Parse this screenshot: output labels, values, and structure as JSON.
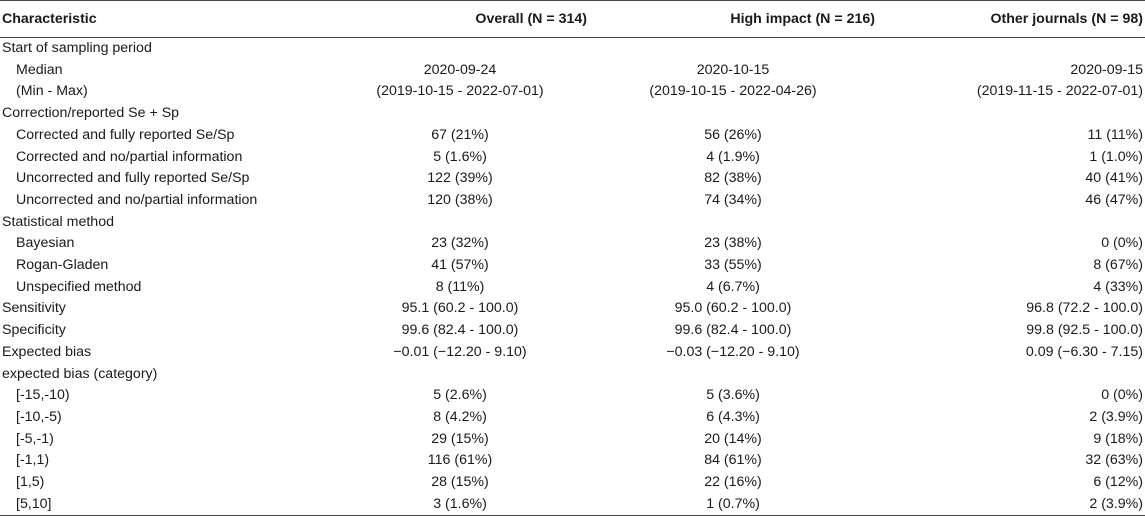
{
  "table": {
    "headers": [
      "Characteristic",
      "Overall (N = 314)",
      "High impact (N = 216)",
      "Other journals (N = 98)"
    ],
    "rows": [
      {
        "label": "Start of sampling period",
        "indent": false,
        "values": [
          "",
          "",
          ""
        ]
      },
      {
        "label": "Median",
        "indent": true,
        "values": [
          "2020-09-24",
          "2020-10-15",
          "2020-09-15"
        ]
      },
      {
        "label": "(Min - Max)",
        "indent": true,
        "values": [
          "(2019-10-15 - 2022-07-01)",
          "(2019-10-15 - 2022-04-26)",
          "(2019-11-15 - 2022-07-01)"
        ]
      },
      {
        "label": "Correction/reported Se + Sp",
        "indent": false,
        "values": [
          "",
          "",
          ""
        ]
      },
      {
        "label": "Corrected and fully reported Se/Sp",
        "indent": true,
        "values": [
          "67 (21%)",
          "56 (26%)",
          "11 (11%)"
        ]
      },
      {
        "label": "Corrected and no/partial information",
        "indent": true,
        "values": [
          "5 (1.6%)",
          "4 (1.9%)",
          "1 (1.0%)"
        ]
      },
      {
        "label": "Uncorrected and fully reported Se/Sp",
        "indent": true,
        "values": [
          "122 (39%)",
          "82 (38%)",
          "40 (41%)"
        ]
      },
      {
        "label": "Uncorrected and no/partial information",
        "indent": true,
        "values": [
          "120 (38%)",
          "74 (34%)",
          "46 (47%)"
        ]
      },
      {
        "label": "Statistical method",
        "indent": false,
        "values": [
          "",
          "",
          ""
        ]
      },
      {
        "label": "Bayesian",
        "indent": true,
        "values": [
          "23 (32%)",
          "23 (38%)",
          "0 (0%)"
        ]
      },
      {
        "label": "Rogan-Gladen",
        "indent": true,
        "values": [
          "41 (57%)",
          "33 (55%)",
          "8 (67%)"
        ]
      },
      {
        "label": "Unspecified method",
        "indent": true,
        "values": [
          "8 (11%)",
          "4 (6.7%)",
          "4 (33%)"
        ]
      },
      {
        "label": "Sensitivity",
        "indent": false,
        "values": [
          "95.1 (60.2 - 100.0)",
          "95.0 (60.2 - 100.0)",
          "96.8 (72.2 - 100.0)"
        ]
      },
      {
        "label": "Specificity",
        "indent": false,
        "values": [
          "99.6 (82.4 - 100.0)",
          "99.6 (82.4 - 100.0)",
          "99.8 (92.5 - 100.0)"
        ]
      },
      {
        "label": "Expected bias",
        "indent": false,
        "values": [
          "−0.01 (−12.20 - 9.10)",
          "−0.03 (−12.20 - 9.10)",
          "0.09 (−6.30 - 7.15)"
        ]
      },
      {
        "label": "expected bias (category)",
        "indent": false,
        "values": [
          "",
          "",
          ""
        ]
      },
      {
        "label": "[-15,-10)",
        "indent": true,
        "values": [
          "5 (2.6%)",
          "5 (3.6%)",
          "0 (0%)"
        ]
      },
      {
        "label": "[-10,-5)",
        "indent": true,
        "values": [
          "8 (4.2%)",
          "6 (4.3%)",
          "2 (3.9%)"
        ]
      },
      {
        "label": "[-5,-1)",
        "indent": true,
        "values": [
          "29 (15%)",
          "20 (14%)",
          "9 (18%)"
        ]
      },
      {
        "label": "[-1,1)",
        "indent": true,
        "values": [
          "116 (61%)",
          "84 (61%)",
          "32 (63%)"
        ]
      },
      {
        "label": "[1,5)",
        "indent": true,
        "values": [
          "28 (15%)",
          "22 (16%)",
          "6 (12%)"
        ]
      },
      {
        "label": "[5,10]",
        "indent": true,
        "values": [
          "3 (1.6%)",
          "1 (0.7%)",
          "2 (3.9%)"
        ]
      }
    ]
  }
}
